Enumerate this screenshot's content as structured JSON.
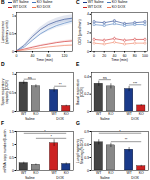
{
  "chart_data": [
    {
      "type": "line",
      "title": "B",
      "xlabel": "Time (min)",
      "ylabel": "Luminescence\n(arbitrary units)",
      "x": [
        0,
        20,
        40,
        60,
        80,
        100,
        120,
        140
      ],
      "series": [
        {
          "name": "WT Saline",
          "color": "#1a3a8a",
          "values": [
            0.02,
            0.18,
            0.42,
            0.62,
            0.76,
            0.85,
            0.91,
            0.94
          ],
          "band_low": [
            0.018,
            0.162,
            0.378,
            0.558,
            0.684,
            0.765,
            0.819,
            0.846
          ],
          "band_high": [
            0.022,
            0.198,
            0.462,
            0.682,
            0.836,
            0.935,
            1.001,
            1.034
          ]
        },
        {
          "name": "KO Saline",
          "color": "#4477bb",
          "values": [
            0.02,
            0.13,
            0.32,
            0.5,
            0.63,
            0.73,
            0.8,
            0.86
          ],
          "band_low": [
            0.018,
            0.117,
            0.288,
            0.45,
            0.567,
            0.657,
            0.72,
            0.774
          ],
          "band_high": [
            0.022,
            0.143,
            0.352,
            0.55,
            0.693,
            0.803,
            0.88,
            0.946
          ]
        },
        {
          "name": "WT DOX",
          "color": "#cc2222",
          "values": [
            0.02,
            0.07,
            0.12,
            0.17,
            0.21,
            0.25,
            0.28,
            0.3
          ],
          "band_low": [
            0.018,
            0.063,
            0.108,
            0.153,
            0.189,
            0.225,
            0.252,
            0.27
          ],
          "band_high": [
            0.022,
            0.077,
            0.132,
            0.187,
            0.231,
            0.275,
            0.308,
            0.33
          ]
        },
        {
          "name": "KO DOX",
          "color": "#ee7755",
          "values": [
            0.02,
            0.04,
            0.07,
            0.1,
            0.13,
            0.15,
            0.17,
            0.18
          ],
          "band_low": [
            0.018,
            0.036,
            0.063,
            0.09,
            0.117,
            0.135,
            0.153,
            0.162
          ],
          "band_high": [
            0.022,
            0.044,
            0.077,
            0.11,
            0.143,
            0.165,
            0.187,
            0.198
          ]
        }
      ],
      "xlim": [
        0,
        140
      ],
      "xticks": [
        0,
        40,
        80,
        120
      ],
      "ylim": [
        0,
        1.1
      ],
      "yticks": [
        0,
        0.5,
        1
      ],
      "legend": "top"
    },
    {
      "type": "line",
      "title": "C",
      "xlabel": "Time (min)",
      "ylabel": "OCR (pmol/min)",
      "x": [
        0,
        20,
        40,
        60,
        80,
        100
      ],
      "series": [
        {
          "name": "WT Saline",
          "color": "#1a3a8a",
          "marker": "square",
          "values": [
            3.2,
            3.1,
            3.3,
            3.0,
            3.1,
            3.2
          ],
          "errors": [
            0.15,
            0.15,
            0.15,
            0.15,
            0.15,
            0.15
          ]
        },
        {
          "name": "KO Saline",
          "color": "#4477bb",
          "marker": "square",
          "values": [
            2.9,
            2.8,
            3.0,
            2.8,
            2.9,
            2.9
          ],
          "errors": [
            0.15,
            0.15,
            0.15,
            0.15,
            0.15,
            0.15
          ]
        },
        {
          "name": "WT DOX",
          "color": "#cc2222",
          "marker": "circle",
          "values": [
            1.3,
            1.2,
            1.4,
            1.2,
            1.3,
            1.3
          ],
          "errors": [
            0.15,
            0.15,
            0.15,
            0.15,
            0.15,
            0.15
          ]
        },
        {
          "name": "KO DOX",
          "color": "#ee7755",
          "marker": "circle",
          "values": [
            0.9,
            0.8,
            1.0,
            0.8,
            0.9,
            0.9
          ],
          "errors": [
            0.15,
            0.15,
            0.15,
            0.15,
            0.15,
            0.15
          ]
        }
      ],
      "xlim": [
        -5,
        105
      ],
      "xticks": [
        0,
        20,
        40,
        60,
        80,
        100
      ],
      "ylim": [
        0,
        4.2
      ],
      "yticks": [
        0,
        1,
        2,
        3,
        4
      ],
      "legend": "top"
    },
    {
      "type": "bar",
      "title": "D",
      "ylabel": "Spare respiratory\ncapacity (OCR)",
      "categories": [
        "WT",
        "KO",
        "WT",
        "KO"
      ],
      "group_labels": [
        "Saline",
        "DOX"
      ],
      "values": [
        0.78,
        0.68,
        0.58,
        0.15
      ],
      "errors": [
        0.05,
        0.04,
        0.06,
        0.02
      ],
      "colors": [
        "#444444",
        "#888888",
        "#1a3a8a",
        "#cc2222"
      ],
      "ylim": [
        0,
        1.05
      ],
      "yticks": [
        0,
        0.5,
        1
      ],
      "annotations": [
        {
          "text": "ns",
          "bars": [
            0,
            1
          ]
        },
        {
          "text": "**",
          "bars": [
            2,
            3
          ]
        }
      ]
    },
    {
      "type": "bar",
      "title": "E",
      "ylabel": "Basal respiration\n(OCR)",
      "categories": [
        "WT",
        "KO",
        "WT",
        "KO"
      ],
      "group_labels": [
        "Saline",
        "DOX"
      ],
      "values": [
        0.32,
        0.29,
        0.26,
        0.07
      ],
      "errors": [
        0.03,
        0.03,
        0.03,
        0.01
      ],
      "colors": [
        "#444444",
        "#888888",
        "#1a3a8a",
        "#cc2222"
      ],
      "ylim": [
        0,
        0.45
      ],
      "yticks": [
        0,
        0.2,
        0.4
      ],
      "annotations": [
        {
          "text": "ns",
          "bars": [
            0,
            1
          ]
        },
        {
          "text": "***",
          "bars": [
            2,
            3
          ]
        }
      ]
    },
    {
      "type": "bar",
      "title": "F",
      "ylabel": "mRNA copy number/β-actin",
      "categories": [
        "WT",
        "KO",
        "WT",
        "KO"
      ],
      "group_labels": [
        "Saline",
        "DOX"
      ],
      "values": [
        0.28,
        0.22,
        1.05,
        0.25
      ],
      "errors": [
        0.04,
        0.03,
        0.13,
        0.04
      ],
      "colors": [
        "#444444",
        "#888888",
        "#cc2222",
        "#1a3a8a"
      ],
      "ylim": [
        0,
        1.5
      ],
      "yticks": [
        0,
        0.5,
        1,
        1.5
      ],
      "annotations": [
        {
          "text": "*",
          "bars": [
            0,
            3
          ]
        },
        {
          "text": "*",
          "bars": [
            1,
            3
          ]
        }
      ]
    },
    {
      "type": "bar",
      "title": "G",
      "ylabel": "Lung fragments\nStaining (%DCF)",
      "categories": [
        "WT",
        "KO",
        "WT",
        "KO"
      ],
      "group_labels": [
        "Saline",
        "DOX"
      ],
      "values": [
        0.65,
        0.58,
        0.48,
        0.1
      ],
      "errors": [
        0.06,
        0.05,
        0.05,
        0.02
      ],
      "colors": [
        "#444444",
        "#888888",
        "#1a3a8a",
        "#cc2222"
      ],
      "ylim": [
        0,
        0.9
      ],
      "yticks": [
        0,
        0.3,
        0.6,
        0.9
      ],
      "annotations": [
        {
          "text": "*",
          "bars": [
            0,
            3
          ]
        },
        {
          "text": "**",
          "bars": [
            1,
            3
          ]
        }
      ]
    }
  ]
}
